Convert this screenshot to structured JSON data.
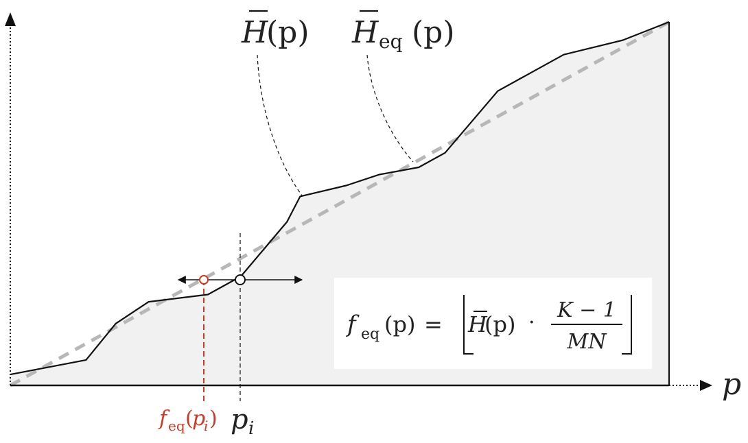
{
  "chart_data": {
    "type": "area",
    "series": [
      {
        "name": "H̄(p)",
        "x": [
          0,
          0.115,
          0.16,
          0.21,
          0.3,
          0.35,
          0.42,
          0.44,
          0.51,
          0.56,
          0.62,
          0.66,
          0.74,
          0.84,
          0.93,
          1.0
        ],
        "y": [
          0.03,
          0.07,
          0.17,
          0.23,
          0.25,
          0.3,
          0.45,
          0.52,
          0.55,
          0.58,
          0.6,
          0.64,
          0.81,
          0.91,
          0.95,
          1.0
        ]
      },
      {
        "name": "H̄eq(p)",
        "x": [
          0,
          1.0
        ],
        "y": [
          0,
          1.0
        ]
      }
    ],
    "axes": {
      "x_label": "p",
      "y_label": ""
    },
    "fill_color": "#f1f1f1",
    "dashed_color": "#b7b7b7",
    "curve_color": "#111111",
    "highlight_color": "#cc3a25"
  },
  "labels": {
    "h_bar": {
      "base": "H",
      "args": "(p)"
    },
    "h_eq": {
      "base": "H",
      "sub": "eq",
      "args": "(p)"
    },
    "p_axis": "p",
    "p_i": {
      "base": "p",
      "sub": "i"
    },
    "f_eq_pi": {
      "base": "f",
      "sub": "eq",
      "open": "(",
      "arg": "p",
      "arg_sub": "i",
      "close": ")"
    }
  },
  "formula": {
    "lhs": {
      "base": "f",
      "sub": "eq",
      "args": "(p)"
    },
    "equals": "=",
    "term": {
      "base": "H",
      "args": "(p)"
    },
    "dot": "·",
    "numerator": "K − 1",
    "denominator": "MN"
  }
}
